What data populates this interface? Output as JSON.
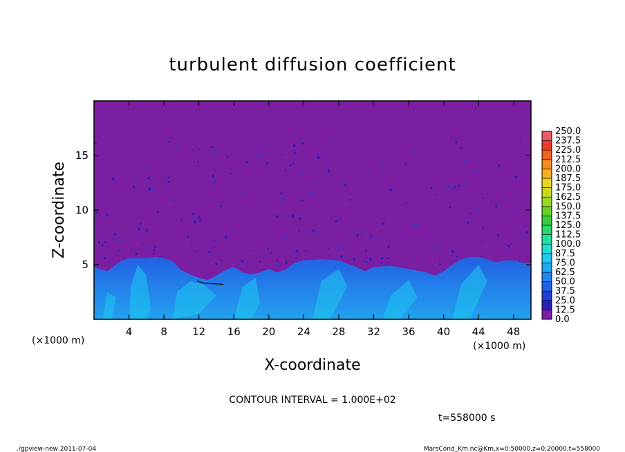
{
  "colors": {
    "background": "#7a1fa2",
    "plot_frame": "#000000"
  },
  "chart_data": {
    "type": "heatmap",
    "title": "turbulent diffusion coefficient",
    "xlabel": "X-coordinate",
    "ylabel": "Z-coordinate",
    "x_unit_left": "(×1000 m)",
    "x_unit_right": "(×1000 m)",
    "xlim": [
      0,
      50
    ],
    "ylim": [
      0,
      20
    ],
    "x_ticks": [
      4,
      8,
      12,
      16,
      20,
      24,
      28,
      32,
      36,
      40,
      44,
      48
    ],
    "y_ticks": [
      5,
      10,
      15
    ],
    "contour_interval": "CONTOUR INTERVAL = 1.000E+02",
    "time_label": "t=558000 s",
    "colorbar": {
      "levels": [
        "0.0",
        "12.5",
        "25.0",
        "37.5",
        "50.0",
        "62.5",
        "75.0",
        "87.5",
        "100.0",
        "112.5",
        "125.0",
        "137.5",
        "150.0",
        "162.5",
        "175.0",
        "187.5",
        "200.0",
        "212.5",
        "225.0",
        "237.5",
        "250.0"
      ],
      "colors": [
        "#7a1fa2",
        "#2b1fb8",
        "#2140d6",
        "#1e63e6",
        "#1e86ee",
        "#1ea9f3",
        "#1ec8f0",
        "#20dcd0",
        "#22e0a0",
        "#2ad870",
        "#36cc3c",
        "#66d21e",
        "#9ad81e",
        "#c8d81e",
        "#ecd41e",
        "#f6b01e",
        "#f68a1e",
        "#f4621e",
        "#f03a2a",
        "#ec5a66"
      ]
    },
    "features": {
      "boundary_layer_heights": [
        [
          0,
          4.8
        ],
        [
          1.5,
          4.4
        ],
        [
          3,
          5.3
        ],
        [
          4,
          5.6
        ],
        [
          5,
          5.6
        ],
        [
          6,
          5.6
        ],
        [
          7,
          5.7
        ],
        [
          8,
          5.6
        ],
        [
          9,
          5.3
        ],
        [
          10,
          4.5
        ],
        [
          11,
          4.1
        ],
        [
          12,
          3.8
        ],
        [
          13,
          3.6
        ],
        [
          14,
          4.0
        ],
        [
          15,
          4.5
        ],
        [
          16,
          4.8
        ],
        [
          17,
          4.3
        ],
        [
          18,
          4.1
        ],
        [
          19,
          4.3
        ],
        [
          20,
          4.6
        ],
        [
          21,
          4.3
        ],
        [
          22,
          4.6
        ],
        [
          23,
          5.2
        ],
        [
          24,
          5.4
        ],
        [
          26,
          5.5
        ],
        [
          28,
          5.4
        ],
        [
          30,
          4.8
        ],
        [
          31,
          4.4
        ],
        [
          32,
          4.8
        ],
        [
          34,
          4.9
        ],
        [
          36,
          4.6
        ],
        [
          38,
          4.3
        ],
        [
          39,
          4.0
        ],
        [
          40,
          4.4
        ],
        [
          41,
          5.0
        ],
        [
          42,
          5.5
        ],
        [
          43,
          5.7
        ],
        [
          44,
          5.7
        ],
        [
          45,
          5.5
        ],
        [
          46,
          5.2
        ],
        [
          47,
          5.4
        ],
        [
          48,
          5.4
        ],
        [
          49,
          5.2
        ],
        [
          50,
          5.1
        ]
      ]
    }
  },
  "footer": {
    "left": "./gpview-new   2011-07-04",
    "right": "MarsCond_Km.nc@Km,x=0:50000,z=0:20000,t=558000"
  }
}
